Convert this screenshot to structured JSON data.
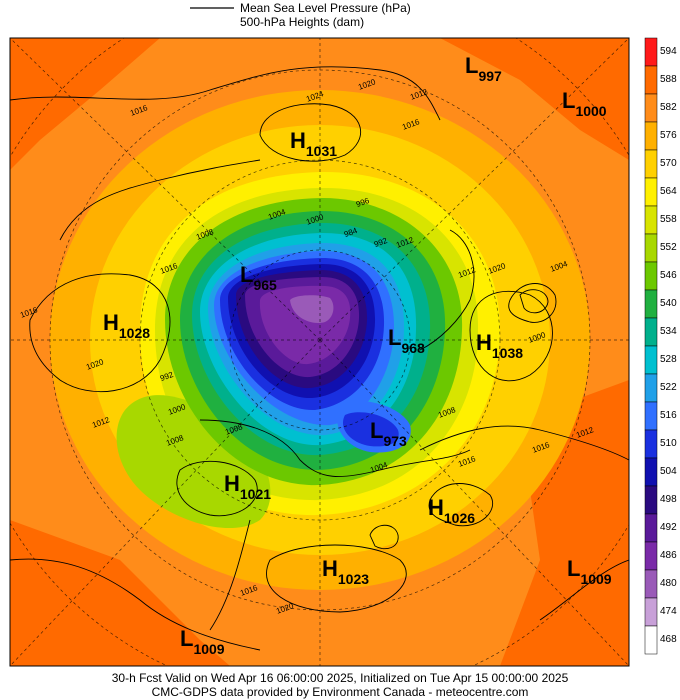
{
  "legend": {
    "mslp_label": "Mean Sea Level Pressure (hPa)",
    "heights_label": "500-hPa Heights (dam)"
  },
  "colorbar": {
    "ticks": [
      "594",
      "588",
      "582",
      "576",
      "570",
      "564",
      "558",
      "552",
      "546",
      "540",
      "534",
      "528",
      "522",
      "516",
      "510",
      "504",
      "498",
      "492",
      "486",
      "480",
      "474",
      "468"
    ],
    "colors": [
      "#ff1a1a",
      "#ff6a00",
      "#ff8c1a",
      "#ffb000",
      "#ffd000",
      "#fff000",
      "#d8e400",
      "#a8d800",
      "#6cc800",
      "#20b040",
      "#00b08c",
      "#00c0d0",
      "#20a0e8",
      "#3070ff",
      "#1a30e0",
      "#1010b0",
      "#2a0a80",
      "#5a1a9a",
      "#7a2aa8",
      "#9a5ab8",
      "#c8a0d8",
      "#ffffff"
    ]
  },
  "systems": {
    "h1031": {
      "type": "H",
      "value": "1031"
    },
    "h1028": {
      "type": "H",
      "value": "1028"
    },
    "h1038": {
      "type": "H",
      "value": "1038"
    },
    "h1021": {
      "type": "H",
      "value": "1021"
    },
    "h1026": {
      "type": "H",
      "value": "1026"
    },
    "h1023": {
      "type": "H",
      "value": "1023"
    },
    "l997": {
      "type": "L",
      "value": "997"
    },
    "l1000": {
      "type": "L",
      "value": "1000"
    },
    "l965": {
      "type": "L",
      "value": "965"
    },
    "l968": {
      "type": "L",
      "value": "968"
    },
    "l973": {
      "type": "L",
      "value": "973"
    },
    "l1009a": {
      "type": "L",
      "value": "1009"
    },
    "l1009b": {
      "type": "L",
      "value": "1009"
    }
  },
  "isobar_labels": [
    "1016",
    "1024",
    "1020",
    "1012",
    "1016",
    "1008",
    "1004",
    "996",
    "1000",
    "984",
    "992",
    "1012",
    "1016",
    "1016",
    "1020",
    "1020",
    "1012",
    "1008",
    "1000",
    "992",
    "1008",
    "1004",
    "1000",
    "1012",
    "1016",
    "1016",
    "1012",
    "1016",
    "1020",
    "1004",
    "1008"
  ],
  "footer": {
    "line1": "30-h Fcst Valid on Wed Apr 16 06:00:00 2025, Initialized on Tue Apr 15 00:00:00 2025",
    "line2": "CMC-GDPS data provided by Environment Canada - meteocentre.com"
  }
}
